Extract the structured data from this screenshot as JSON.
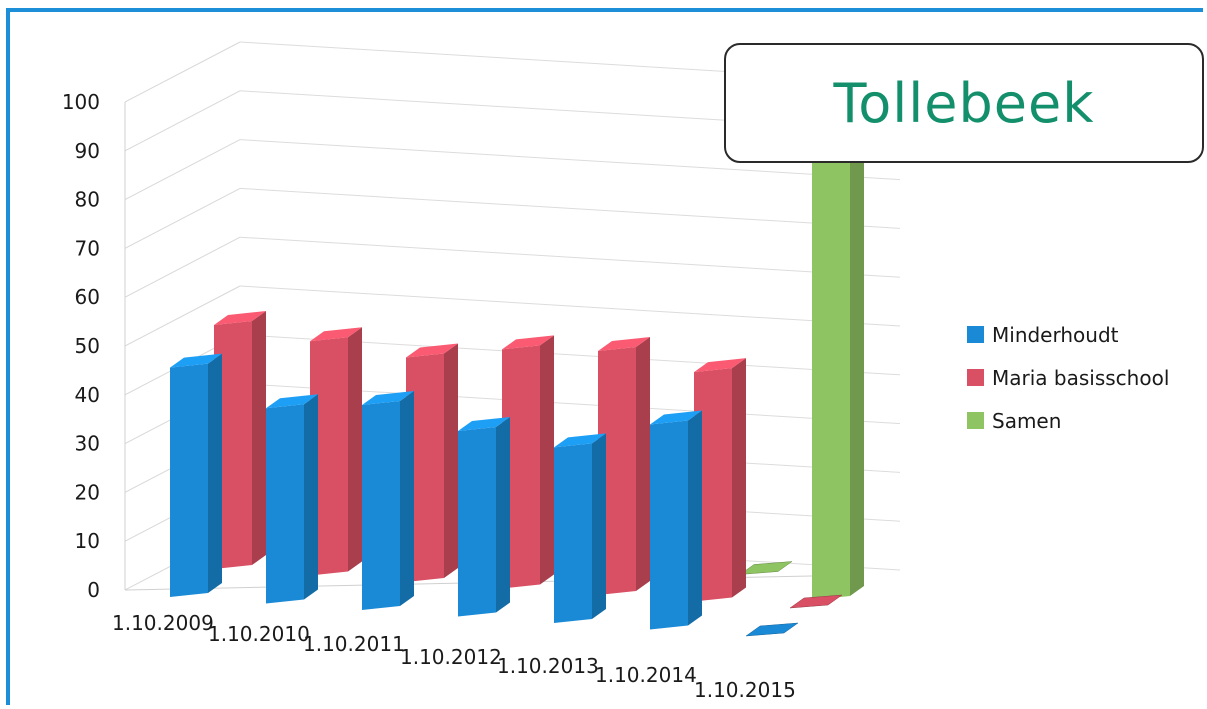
{
  "chart_data": {
    "type": "bar",
    "style": "3d-clustered-column",
    "title": "Tollebeek",
    "categories": [
      "1.10.2009",
      "1.10.2010",
      "1.10.2011",
      "1.10.2012",
      "1.10.2013",
      "1.10.2014",
      "1.10.2015"
    ],
    "series": [
      {
        "name": "Minderhoudt",
        "color": "#1a8ad6",
        "values": [
          47,
          40,
          42,
          38,
          36,
          42,
          0
        ]
      },
      {
        "name": "Maria basisschool",
        "color": "#d94f63",
        "values": [
          50,
          48,
          46,
          49,
          50,
          47,
          0
        ]
      },
      {
        "name": "Samen",
        "color": "#8fc463",
        "values": [
          0,
          0,
          0,
          0,
          0,
          0,
          92
        ]
      }
    ],
    "ylim": [
      0,
      100
    ],
    "yticks": [
      "0",
      "10",
      "20",
      "30",
      "40",
      "50",
      "60",
      "70",
      "80",
      "90",
      "100"
    ],
    "xlabel": "",
    "ylabel": "",
    "grid": true,
    "legend_position": "right"
  }
}
